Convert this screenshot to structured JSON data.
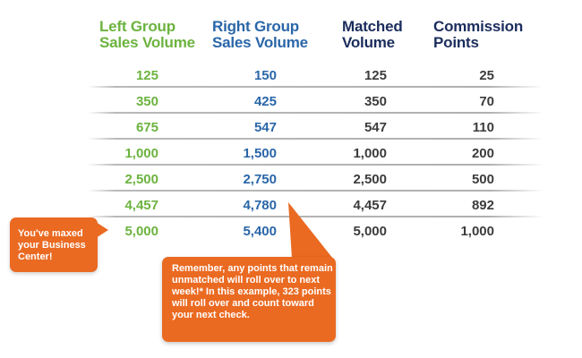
{
  "headers": {
    "left": [
      "Left Group",
      "Sales Volume"
    ],
    "right": [
      "Right Group",
      "Sales Volume"
    ],
    "matched": [
      "Matched",
      "Volume"
    ],
    "commission": [
      "Commission",
      "Points"
    ]
  },
  "rows": [
    {
      "left": "125",
      "right": "150",
      "matched": "125",
      "commission": "25"
    },
    {
      "left": "350",
      "right": "425",
      "matched": "350",
      "commission": "70"
    },
    {
      "left": "675",
      "right": "547",
      "matched": "547",
      "commission": "110"
    },
    {
      "left": "1,000",
      "right": "1,500",
      "matched": "1,000",
      "commission": "200"
    },
    {
      "left": "2,500",
      "right": "2,750",
      "matched": "2,500",
      "commission": "500"
    },
    {
      "left": "4,457",
      "right": "4,780",
      "matched": "4,457",
      "commission": "892"
    },
    {
      "left": "5,000",
      "right": "5,400",
      "matched": "5,000",
      "commission": "1,000"
    }
  ],
  "callouts": {
    "maxed": "You've maxed your Business Center!",
    "rollover": "Remember, any points that remain unmatched will roll over to next week!* In this example, 323 points will roll over and count toward your next check."
  },
  "colors": {
    "left_green": "#6cb33f",
    "right_blue": "#2a66a8",
    "navy": "#1b2d5c",
    "value_gray": "#3c3c3c",
    "callout_orange": "#ea6a22"
  }
}
